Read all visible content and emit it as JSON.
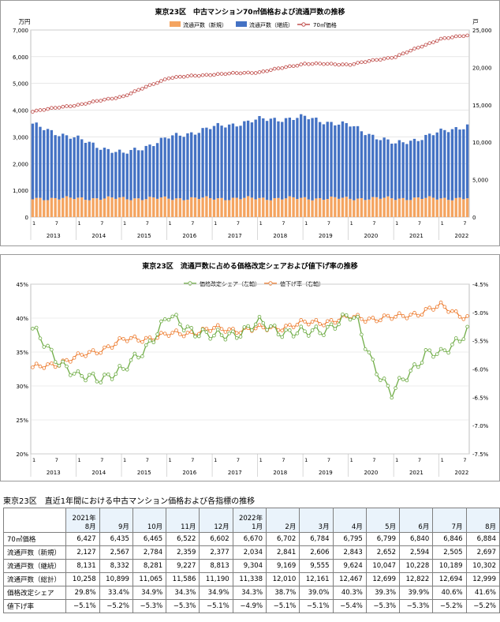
{
  "chart_data": [
    {
      "type": "bar+line",
      "title": "東京23区　中古マンション70㎡価格および流通戸数の推移",
      "ylabel_left": "万円",
      "ylabel_right": "戸",
      "ylim_left": [
        0,
        7000
      ],
      "ylim_right": [
        0,
        25000
      ],
      "y_ticks_left": [
        "0",
        "1,000",
        "2,000",
        "3,000",
        "4,000",
        "5,000",
        "6,000",
        "7,000"
      ],
      "y_ticks_right": [
        "0",
        "5,000",
        "10,000",
        "15,000",
        "20,000",
        "25,000"
      ],
      "x_month_ticks": [
        "1",
        "7"
      ],
      "years": [
        "2013",
        "2014",
        "2015",
        "2016",
        "2017",
        "2018",
        "2019",
        "2020",
        "2021",
        "2022"
      ],
      "period": "2013-01 to 2022-08 (monthly)",
      "legend": [
        "流通戸数（新規）",
        "流通戸数（継続）",
        "70㎡価格"
      ],
      "colors": {
        "new": "#f4a460",
        "continuing": "#4472c4",
        "price": "#c0504d"
      },
      "price_yen10k_by_year_start": [
        3960,
        4200,
        4520,
        5210,
        5340,
        5420,
        5740,
        5710,
        6000,
        6670
      ],
      "price_yen10k_2022_08": 6884,
      "listings_total_by_year_start": [
        12300,
        10400,
        8400,
        10600,
        12000,
        13000,
        13300,
        12200,
        9700,
        11338
      ],
      "listings_new_typical": 2500
    },
    {
      "type": "line",
      "title": "東京23区　流通戸数に占める価格改定シェアおよび値下げ率の推移",
      "ylim_left": [
        0.2,
        0.45
      ],
      "ylim_right": [
        -0.075,
        -0.045
      ],
      "y_ticks_left": [
        "20%",
        "25%",
        "30%",
        "35%",
        "40%",
        "45%"
      ],
      "y_ticks_right": [
        "-4.5%",
        "-5.0%",
        "-5.5%",
        "-6.0%",
        "-6.5%",
        "-7.0%",
        "-7.5%"
      ],
      "legend": [
        "価格改定シェア（左軸）",
        "値下げ率（右軸）"
      ],
      "colors": {
        "share": "#70ad47",
        "cut": "#ed7d31"
      },
      "share_by_year_start": [
        0.38,
        0.31,
        0.32,
        0.4,
        0.37,
        0.39,
        0.375,
        0.4,
        0.36,
        0.343
      ],
      "share_min_2020_2021": 0.285,
      "share_2022_08": 0.416,
      "cut_by_year_start": [
        -0.06,
        -0.058,
        -0.055,
        -0.054,
        -0.053,
        -0.053,
        -0.052,
        -0.051,
        -0.051,
        -0.049
      ]
    }
  ],
  "table": {
    "title": "東京23区　直近1年間における中古マンション価格および各指標の推移",
    "columns": [
      {
        "year": "2021年",
        "month": "8月"
      },
      {
        "year": "",
        "month": "9月"
      },
      {
        "year": "",
        "month": "10月"
      },
      {
        "year": "",
        "month": "11月"
      },
      {
        "year": "",
        "month": "12月"
      },
      {
        "year": "2022年",
        "month": "1月"
      },
      {
        "year": "",
        "month": "2月"
      },
      {
        "year": "",
        "month": "3月"
      },
      {
        "year": "",
        "month": "4月"
      },
      {
        "year": "",
        "month": "5月"
      },
      {
        "year": "",
        "month": "6月"
      },
      {
        "year": "",
        "month": "7月"
      },
      {
        "year": "",
        "month": "8月"
      }
    ],
    "rows": [
      {
        "label": "70㎡価格",
        "values": [
          "6,427",
          "6,435",
          "6,465",
          "6,522",
          "6,602",
          "6,670",
          "6,702",
          "6,784",
          "6,795",
          "6,799",
          "6,840",
          "6,846",
          "6,884"
        ]
      },
      {
        "label": "流通戸数（新規）",
        "values": [
          "2,127",
          "2,567",
          "2,784",
          "2,359",
          "2,377",
          "2,034",
          "2,841",
          "2,606",
          "2,843",
          "2,652",
          "2,594",
          "2,505",
          "2,697"
        ]
      },
      {
        "label": "流通戸数（継続）",
        "values": [
          "8,131",
          "8,332",
          "8,281",
          "9,227",
          "8,813",
          "9,304",
          "9,169",
          "9,555",
          "9,624",
          "10,047",
          "10,228",
          "10,189",
          "10,302"
        ]
      },
      {
        "label": "流通戸数（総計）",
        "values": [
          "10,258",
          "10,899",
          "11,065",
          "11,586",
          "11,190",
          "11,338",
          "12,010",
          "12,161",
          "12,467",
          "12,699",
          "12,822",
          "12,694",
          "12,999"
        ]
      },
      {
        "label": "価格改定シェア",
        "values": [
          "29.8%",
          "33.4%",
          "34.9%",
          "34.3%",
          "34.9%",
          "34.3%",
          "38.7%",
          "39.0%",
          "40.3%",
          "39.3%",
          "39.9%",
          "40.6%",
          "41.6%"
        ]
      },
      {
        "label": "値下げ率",
        "values": [
          "−5.1%",
          "−5.2%",
          "−5.3%",
          "−5.3%",
          "−5.1%",
          "−4.9%",
          "−5.1%",
          "−5.1%",
          "−5.4%",
          "−5.3%",
          "−5.3%",
          "−5.2%",
          "−5.2%"
        ]
      }
    ]
  }
}
